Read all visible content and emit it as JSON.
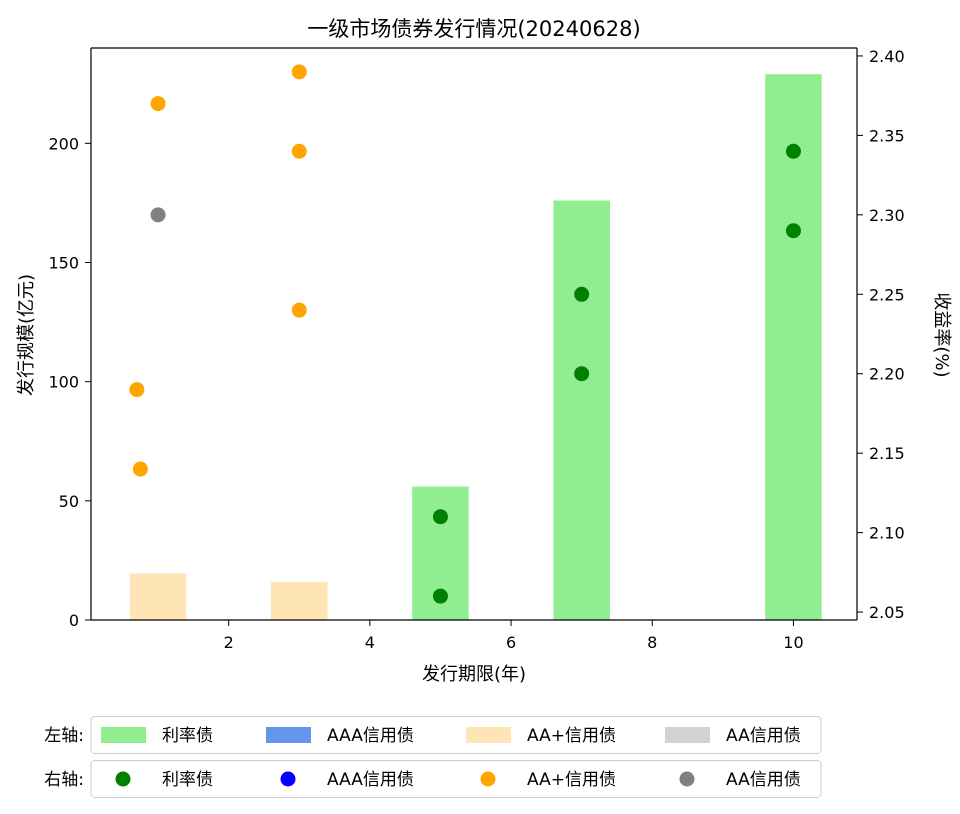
{
  "chart_data": {
    "title": "一级市场债券发行情况(20240628)",
    "xlabel": "发行期限(年)",
    "ylabel_left": "发行规模(亿元)",
    "ylabel_right": "收益率(%)",
    "x_ticks": [
      "2",
      "4",
      "6",
      "8",
      "10"
    ],
    "y_left_ticks": [
      "0",
      "50",
      "100",
      "150",
      "200"
    ],
    "y_right_ticks": [
      "2.05",
      "2.10",
      "2.15",
      "2.20",
      "2.25",
      "2.30",
      "2.35",
      "2.40"
    ],
    "xlim": [
      0.05,
      10.9
    ],
    "ylim_left": [
      0,
      240
    ],
    "ylim_right": [
      2.045,
      2.405
    ],
    "grid": false,
    "bars": [
      {
        "series": "利率债",
        "x": 5,
        "value": 56,
        "color": "#90ee90"
      },
      {
        "series": "利率债",
        "x": 7,
        "value": 176,
        "color": "#90ee90"
      },
      {
        "series": "利率债",
        "x": 10,
        "value": 229,
        "color": "#90ee90"
      },
      {
        "series": "AA+信用债",
        "x": 1,
        "value": 19.5,
        "color": "#ffe4b5"
      },
      {
        "series": "AA+信用债",
        "x": 3,
        "value": 16,
        "color": "#ffe4b5"
      }
    ],
    "points": [
      {
        "series": "利率债",
        "x": 5,
        "y": 2.06,
        "color": "#008000"
      },
      {
        "series": "利率债",
        "x": 5,
        "y": 2.11,
        "color": "#008000"
      },
      {
        "series": "利率债",
        "x": 7,
        "y": 2.2,
        "color": "#008000"
      },
      {
        "series": "利率债",
        "x": 7,
        "y": 2.25,
        "color": "#008000"
      },
      {
        "series": "利率债",
        "x": 10,
        "y": 2.29,
        "color": "#008000"
      },
      {
        "series": "利率债",
        "x": 10,
        "y": 2.34,
        "color": "#008000"
      },
      {
        "series": "AA+信用债",
        "x": 0.7,
        "y": 2.19,
        "color": "#ffa500"
      },
      {
        "series": "AA+信用债",
        "x": 0.75,
        "y": 2.14,
        "color": "#ffa500"
      },
      {
        "series": "AA+信用债",
        "x": 1.0,
        "y": 2.37,
        "color": "#ffa500"
      },
      {
        "series": "AA+信用债",
        "x": 3,
        "y": 2.39,
        "color": "#ffa500"
      },
      {
        "series": "AA+信用债",
        "x": 3,
        "y": 2.34,
        "color": "#ffa500"
      },
      {
        "series": "AA+信用债",
        "x": 3,
        "y": 2.24,
        "color": "#ffa500"
      },
      {
        "series": "AA信用债",
        "x": 1.0,
        "y": 2.3,
        "color": "#808080"
      }
    ],
    "legend": {
      "rows": [
        {
          "label": "左轴:",
          "kind": "bar",
          "items": [
            {
              "label": "利率债",
              "color": "#90ee90"
            },
            {
              "label": "AAA信用债",
              "color": "#6495ed"
            },
            {
              "label": "AA+信用债",
              "color": "#ffe4b5"
            },
            {
              "label": "AA信用债",
              "color": "#d3d3d3"
            }
          ]
        },
        {
          "label": "右轴:",
          "kind": "dot",
          "items": [
            {
              "label": "利率债",
              "color": "#008000"
            },
            {
              "label": "AAA信用债",
              "color": "#0000ff"
            },
            {
              "label": "AA+信用债",
              "color": "#ffa500"
            },
            {
              "label": "AA信用债",
              "color": "#808080"
            }
          ]
        }
      ]
    }
  }
}
